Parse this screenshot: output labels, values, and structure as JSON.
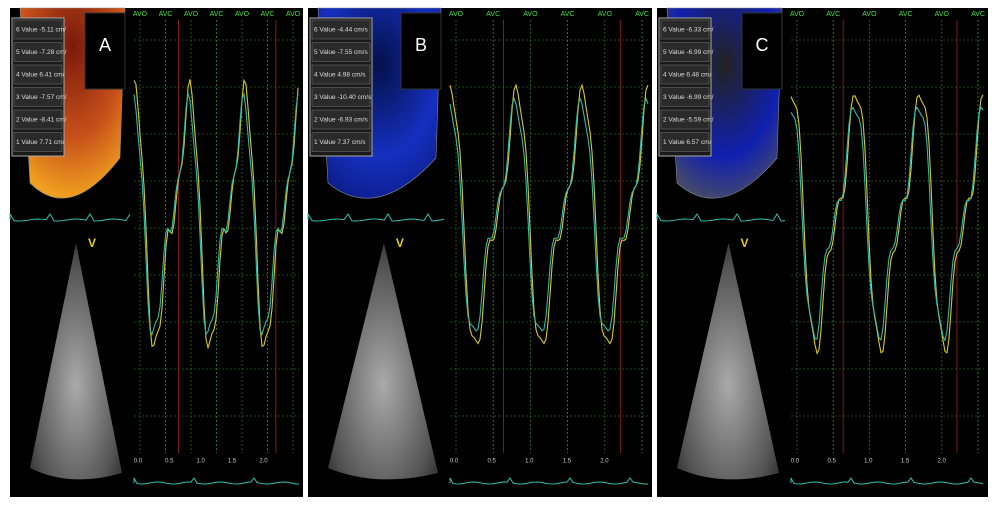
{
  "panels": [
    {
      "label": "A",
      "values": [
        "6 Value -5.11 cm/",
        "5 Value -7.28 cm/",
        "4 Value 6.41 cm/",
        "3 Value -7.57 cm/",
        "2 Value -8.41 cm/",
        "1 Value 7.71 cm/"
      ],
      "events": [
        "AVO",
        "AVC",
        "AVO",
        "AVC",
        "AVO",
        "AVC",
        "AVO"
      ],
      "x_ticks": [
        "0.0",
        "0.5",
        "1.0",
        "1.5",
        "2.0"
      ]
    },
    {
      "label": "B",
      "values": [
        "6 Value -4.44 cm/s",
        "5 Value -7.55 cm/s",
        "4 Value 4.98 cm/s",
        "3 Value -10.40 cm/s",
        "2 Value -6.93 cm/s",
        "1 Value 7.37 cm/s"
      ],
      "events": [
        "AVO",
        "AVC",
        "AVO",
        "AVC",
        "AVO",
        "AVC"
      ],
      "x_ticks": [
        "0.0",
        "0.5",
        "1.0",
        "1.5",
        "2.0"
      ]
    },
    {
      "label": "C",
      "values": [
        "6 Value -6.33 cm/",
        "5 Value -6.99 cm/",
        "4 Value 6.48 cm/",
        "3 Value -6.99 cm/",
        "2 Value -5.59 cm/",
        "1 Value 6.57 cm/"
      ],
      "events": [
        "AVO",
        "AVC",
        "AVO",
        "AVC",
        "AVO",
        "AVC"
      ],
      "x_ticks": [
        "0.0",
        "0.5",
        "1.0",
        "1.5",
        "2.0"
      ]
    }
  ]
}
